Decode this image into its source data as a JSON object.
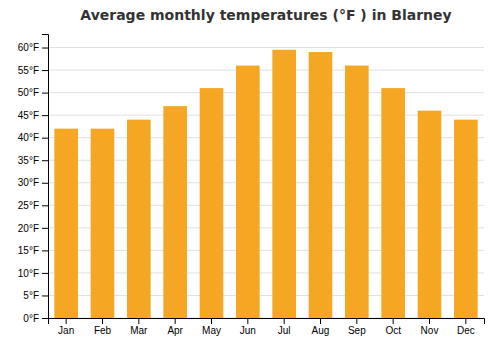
{
  "chart_data": {
    "type": "bar",
    "title": "Average monthly temperatures (°F ) in Blarney",
    "categories": [
      "Jan",
      "Feb",
      "Mar",
      "Apr",
      "May",
      "Jun",
      "Jul",
      "Aug",
      "Sep",
      "Oct",
      "Nov",
      "Dec"
    ],
    "values": [
      42,
      42,
      44,
      47,
      51,
      56,
      59.5,
      59,
      56,
      51,
      46,
      44
    ],
    "color": "#F5A623",
    "ylim": [
      0,
      63
    ],
    "yticks": [
      {
        "value": 0,
        "label": "0°F"
      },
      {
        "value": 5,
        "label": "5°F"
      },
      {
        "value": 10,
        "label": "10°F"
      },
      {
        "value": 15,
        "label": "15°F"
      },
      {
        "value": 20,
        "label": "20°F"
      },
      {
        "value": 25,
        "label": "25°F"
      },
      {
        "value": 30,
        "label": "30°F"
      },
      {
        "value": 35,
        "label": "35°F"
      },
      {
        "value": 40,
        "label": "40°F"
      },
      {
        "value": 45,
        "label": "45°F"
      },
      {
        "value": 50,
        "label": "50°F"
      },
      {
        "value": 55,
        "label": "55°F"
      },
      {
        "value": 60,
        "label": "60°F"
      }
    ],
    "grid": true
  }
}
